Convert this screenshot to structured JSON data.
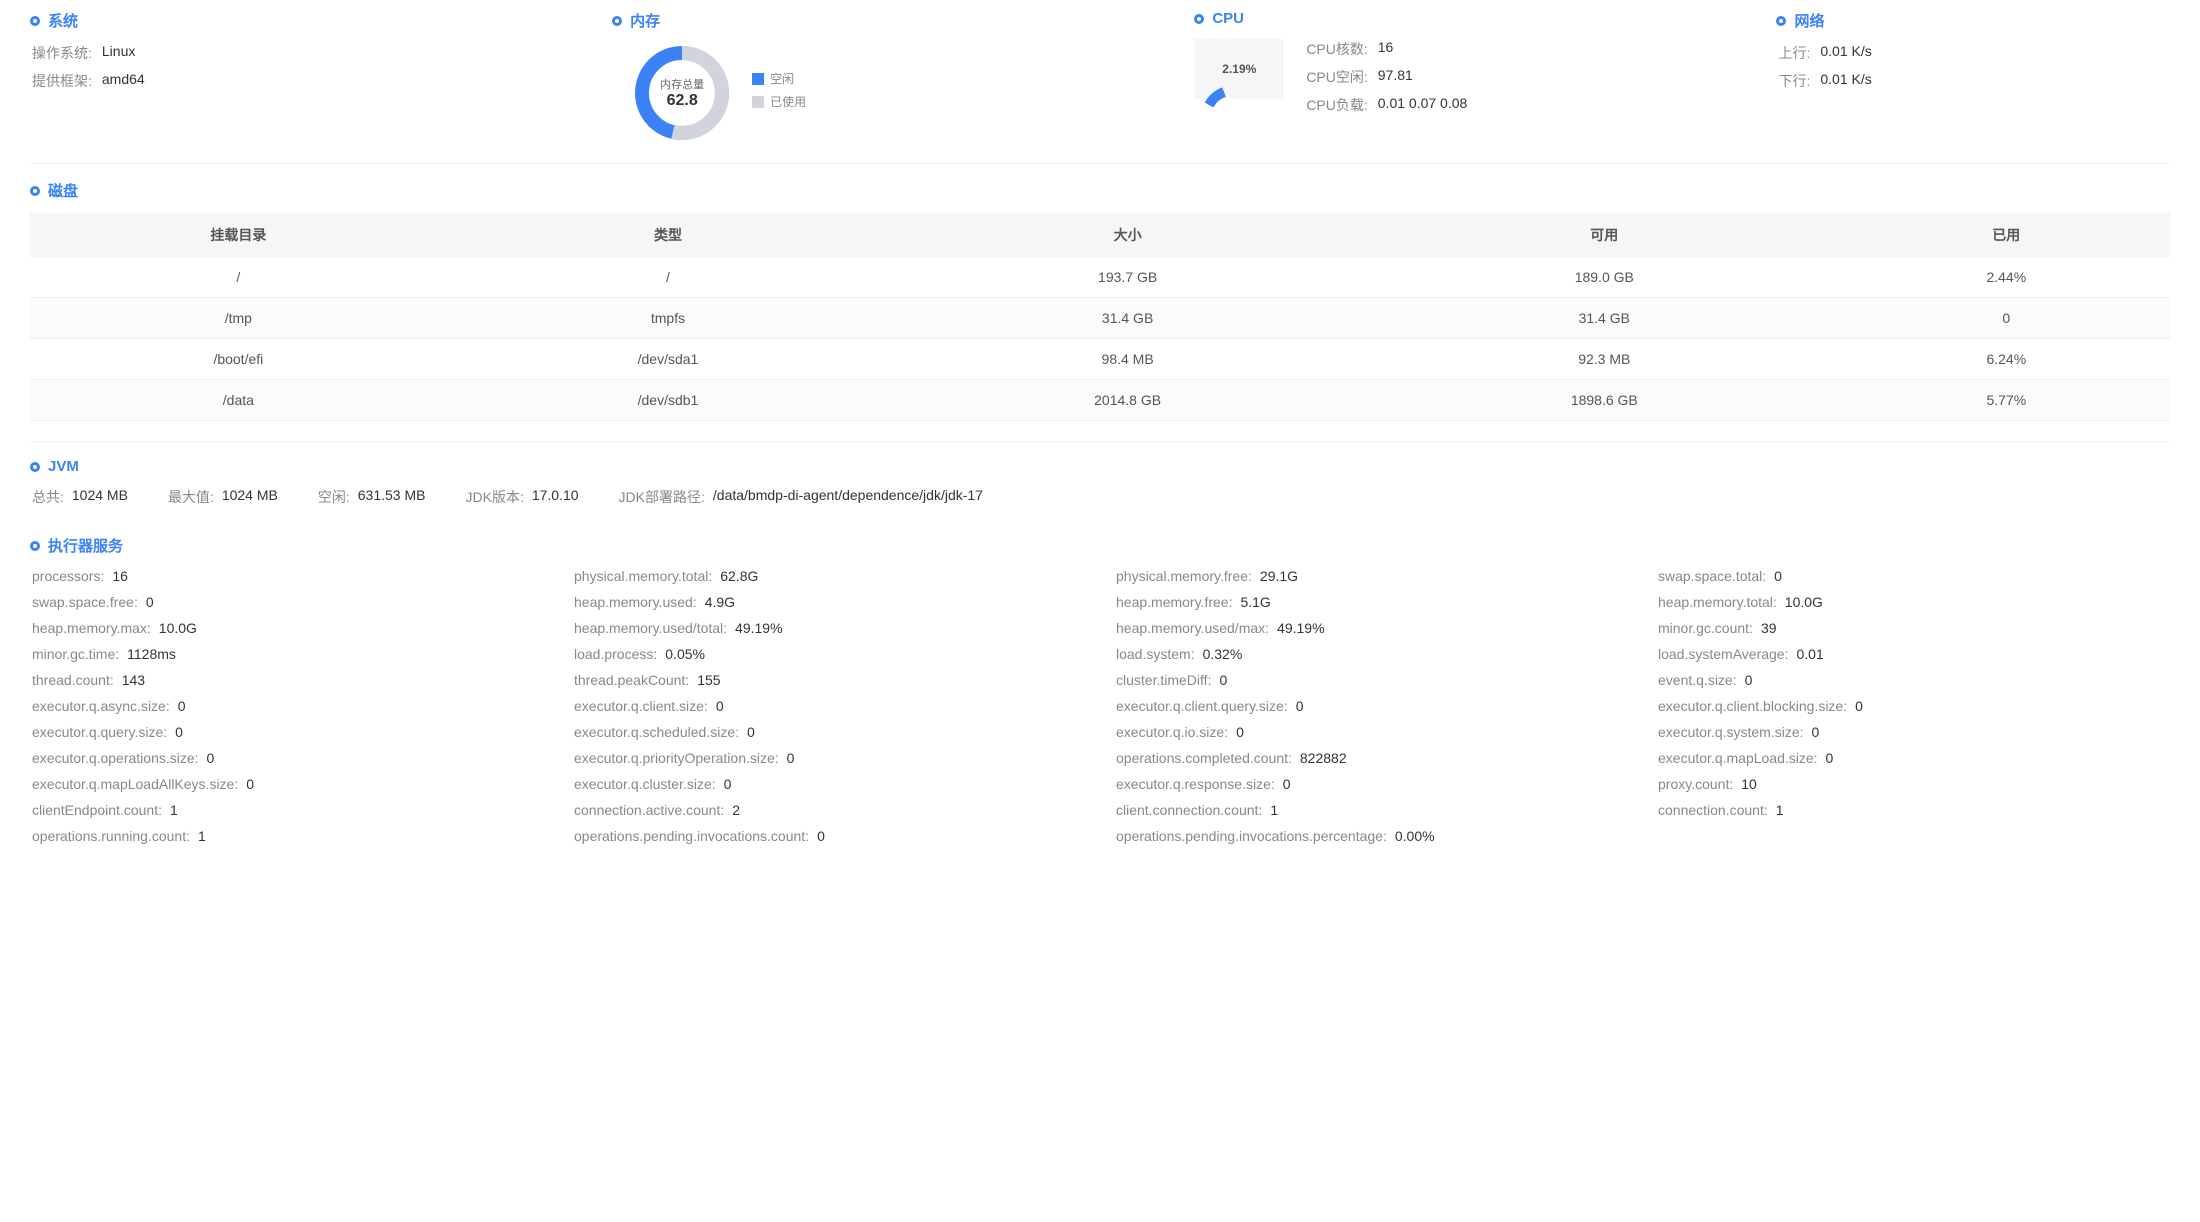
{
  "colors": {
    "primary": "#3b82f6",
    "gray": "#d1d5db",
    "text_muted": "#888888",
    "text": "#333333",
    "table_header_bg": "#f5f6f8"
  },
  "system": {
    "title": "系统",
    "os_label": "操作系统:",
    "os_value": "Linux",
    "arch_label": "提供框架:",
    "arch_value": "amd64"
  },
  "memory": {
    "title": "内存",
    "donut_label": "内存总量",
    "donut_value": "62.8",
    "used_pct": 53.6,
    "free_label": "空闲",
    "used_label": "已使用",
    "free_color": "#3b82f6",
    "used_color": "#d1d5db"
  },
  "cpu": {
    "title": "CPU",
    "gauge_value": "2.19%",
    "gauge_pct": 2.19,
    "cores_label": "CPU核数:",
    "cores_value": "16",
    "idle_label": "CPU空闲:",
    "idle_value": "97.81",
    "load_label": "CPU负载:",
    "load_value": "0.01 0.07 0.08"
  },
  "network": {
    "title": "网络",
    "up_label": "上行:",
    "up_value": "0.01 K/s",
    "down_label": "下行:",
    "down_value": "0.01 K/s"
  },
  "disk": {
    "title": "磁盘",
    "columns": [
      "挂载目录",
      "类型",
      "大小",
      "可用",
      "已用"
    ],
    "rows": [
      [
        "/",
        "/",
        "193.7 GB",
        "189.0 GB",
        "2.44%"
      ],
      [
        "/tmp",
        "tmpfs",
        "31.4 GB",
        "31.4 GB",
        "0"
      ],
      [
        "/boot/efi",
        "/dev/sda1",
        "98.4 MB",
        "92.3 MB",
        "6.24%"
      ],
      [
        "/data",
        "/dev/sdb1",
        "2014.8 GB",
        "1898.6 GB",
        "5.77%"
      ]
    ]
  },
  "jvm": {
    "title": "JVM",
    "items": [
      {
        "label": "总共:",
        "value": "1024 MB"
      },
      {
        "label": "最大值:",
        "value": "1024 MB"
      },
      {
        "label": "空闲:",
        "value": "631.53 MB"
      },
      {
        "label": "JDK版本:",
        "value": "17.0.10"
      },
      {
        "label": "JDK部署路径:",
        "value": "/data/bmdp-di-agent/dependence/jdk/jdk-17"
      }
    ]
  },
  "executor": {
    "title": "执行器服务",
    "metrics": [
      {
        "label": "processors:",
        "value": "16"
      },
      {
        "label": "physical.memory.total:",
        "value": "62.8G"
      },
      {
        "label": "physical.memory.free:",
        "value": "29.1G"
      },
      {
        "label": "swap.space.total:",
        "value": "0"
      },
      {
        "label": "swap.space.free:",
        "value": "0"
      },
      {
        "label": "heap.memory.used:",
        "value": "4.9G"
      },
      {
        "label": "heap.memory.free:",
        "value": "5.1G"
      },
      {
        "label": "heap.memory.total:",
        "value": "10.0G"
      },
      {
        "label": "heap.memory.max:",
        "value": "10.0G"
      },
      {
        "label": "heap.memory.used/total:",
        "value": "49.19%"
      },
      {
        "label": "heap.memory.used/max:",
        "value": "49.19%"
      },
      {
        "label": "minor.gc.count:",
        "value": "39"
      },
      {
        "label": "minor.gc.time:",
        "value": "1128ms"
      },
      {
        "label": "load.process:",
        "value": "0.05%"
      },
      {
        "label": "load.system:",
        "value": "0.32%"
      },
      {
        "label": "load.systemAverage:",
        "value": "0.01"
      },
      {
        "label": "thread.count:",
        "value": "143"
      },
      {
        "label": "thread.peakCount:",
        "value": "155"
      },
      {
        "label": "cluster.timeDiff:",
        "value": "0"
      },
      {
        "label": "event.q.size:",
        "value": "0"
      },
      {
        "label": "executor.q.async.size:",
        "value": "0"
      },
      {
        "label": "executor.q.client.size:",
        "value": "0"
      },
      {
        "label": "executor.q.client.query.size:",
        "value": "0"
      },
      {
        "label": "executor.q.client.blocking.size:",
        "value": "0"
      },
      {
        "label": "executor.q.query.size:",
        "value": "0"
      },
      {
        "label": "executor.q.scheduled.size:",
        "value": "0"
      },
      {
        "label": "executor.q.io.size:",
        "value": "0"
      },
      {
        "label": "executor.q.system.size:",
        "value": "0"
      },
      {
        "label": "executor.q.operations.size:",
        "value": "0"
      },
      {
        "label": "executor.q.priorityOperation.size:",
        "value": "0"
      },
      {
        "label": "operations.completed.count:",
        "value": "822882"
      },
      {
        "label": "executor.q.mapLoad.size:",
        "value": "0"
      },
      {
        "label": "executor.q.mapLoadAllKeys.size:",
        "value": "0"
      },
      {
        "label": "executor.q.cluster.size:",
        "value": "0"
      },
      {
        "label": "executor.q.response.size:",
        "value": "0"
      },
      {
        "label": "proxy.count:",
        "value": "10"
      },
      {
        "label": "clientEndpoint.count:",
        "value": "1"
      },
      {
        "label": "connection.active.count:",
        "value": "2"
      },
      {
        "label": "client.connection.count:",
        "value": "1"
      },
      {
        "label": "connection.count:",
        "value": "1"
      },
      {
        "label": "operations.running.count:",
        "value": "1"
      },
      {
        "label": "operations.pending.invocations.count:",
        "value": "0"
      },
      {
        "label": "operations.pending.invocations.percentage:",
        "value": "0.00%"
      }
    ]
  }
}
